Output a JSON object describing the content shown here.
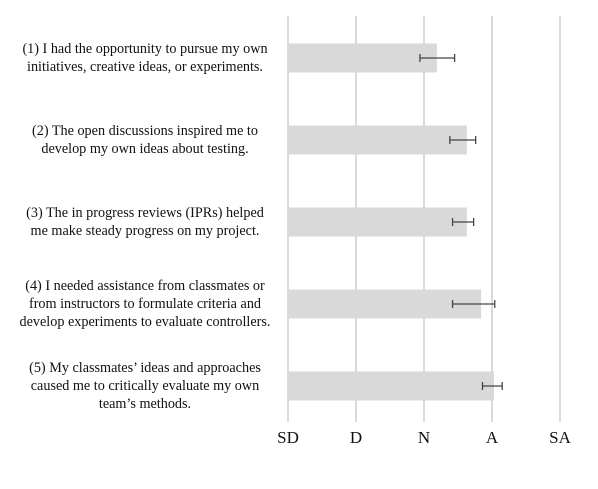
{
  "chart_data": {
    "type": "bar",
    "orientation": "horizontal",
    "categories": [
      [
        "(1) I had the opportunity to pursue my own",
        "initiatives, creative ideas, or experiments."
      ],
      [
        "(2) The open discussions inspired me to",
        "develop my own ideas about testing."
      ],
      [
        "(3) The in progress reviews (IPRs) helped",
        "me make steady progress on my project."
      ],
      [
        "(4) I needed assistance from classmates or",
        "from instructors to formulate criteria and",
        "develop experiments to evaluate controllers."
      ],
      [
        "(5) My classmates’ ideas and approaches",
        "caused me to critically evaluate my own",
        "team’s methods."
      ]
    ],
    "values": [
      3.19,
      3.63,
      3.63,
      3.84,
      4.03
    ],
    "error": [
      [
        2.94,
        3.45
      ],
      [
        3.38,
        3.76
      ],
      [
        3.42,
        3.73
      ],
      [
        3.42,
        4.04
      ],
      [
        3.86,
        4.15
      ]
    ],
    "xticks": [
      "SD",
      "D",
      "N",
      "A",
      "SA"
    ],
    "xtick_values": [
      1,
      2,
      3,
      4,
      5
    ],
    "xlim": [
      1,
      5
    ],
    "grid": true,
    "bar_color": "#d9d9d9",
    "gridline_color": "#d0d0d0",
    "error_color": "#444444"
  }
}
